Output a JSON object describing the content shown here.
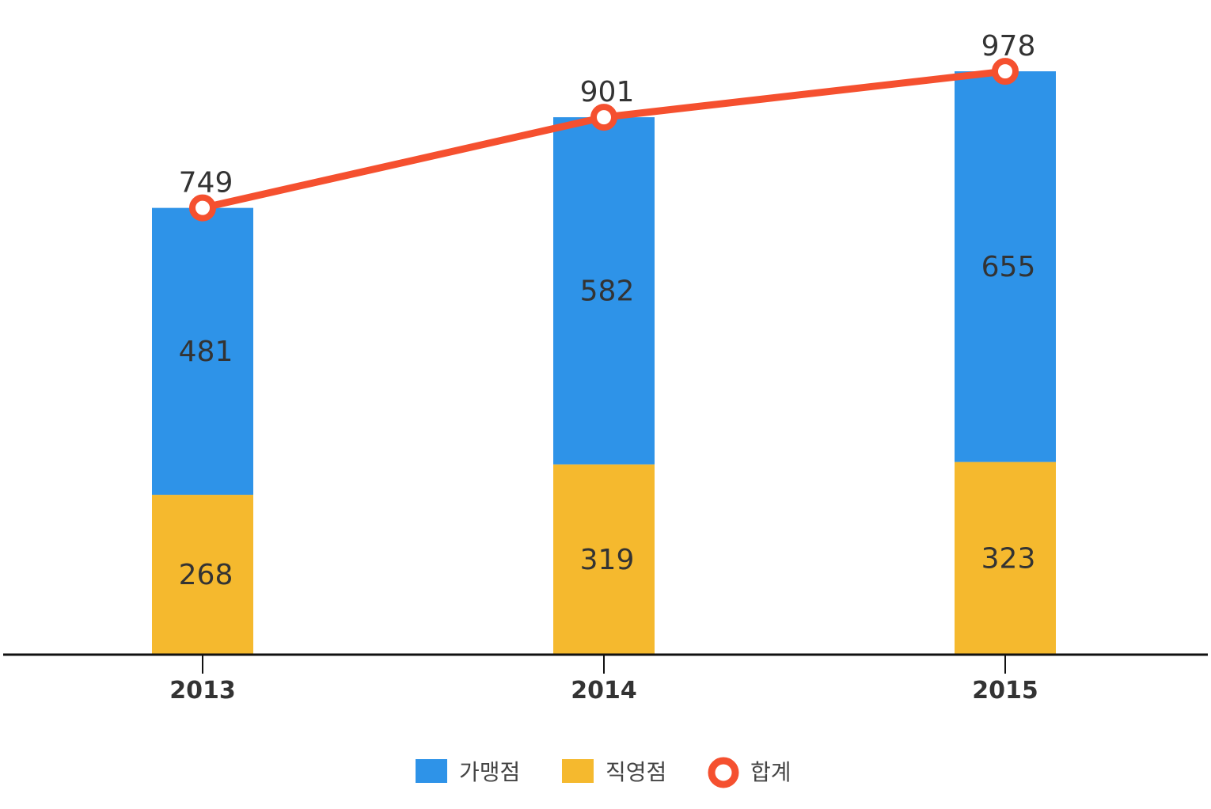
{
  "chart_data": {
    "type": "bar",
    "stacked": true,
    "categories": [
      "2013",
      "2014",
      "2015"
    ],
    "series": [
      {
        "name": "직영점",
        "values": [
          268,
          319,
          323
        ],
        "color": "#F5B92E"
      },
      {
        "name": "가맹점",
        "values": [
          481,
          582,
          655
        ],
        "color": "#2E93E8"
      }
    ],
    "line_series": {
      "name": "합계",
      "values": [
        749,
        901,
        978
      ],
      "color": "#F5502F"
    },
    "ylim": [
      0,
      1000
    ],
    "grid": false,
    "legend": {
      "position": "bottom",
      "order": [
        "가맹점",
        "직영점",
        "합계"
      ]
    }
  }
}
